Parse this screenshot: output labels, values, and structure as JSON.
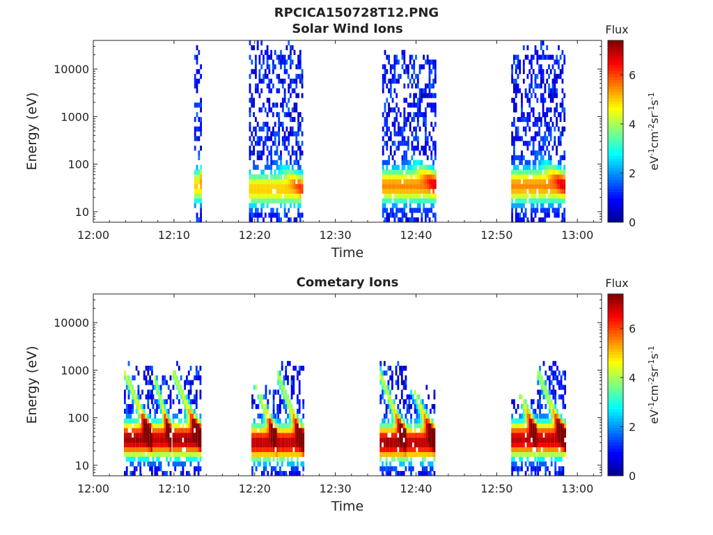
{
  "figure": {
    "title": "RPCICA150728T12.PNG"
  },
  "colors": {
    "colormap": "jet",
    "cmap_stops": [
      "#00008f",
      "#0000ff",
      "#0080ff",
      "#00ffff",
      "#80ff80",
      "#ffff00",
      "#ff8000",
      "#ff0000",
      "#800000"
    ]
  },
  "chart_data": [
    {
      "type": "heatmap",
      "title": "Solar Wind Ions",
      "xlabel": "Time",
      "ylabel": "Energy (eV)",
      "x_tick_labels": [
        "12:00",
        "12:10",
        "12:20",
        "12:30",
        "12:40",
        "12:50",
        "13:00"
      ],
      "x_ticks_min": [
        0,
        10,
        20,
        30,
        40,
        50,
        60
      ],
      "xlim_min": [
        0,
        63
      ],
      "y_scale": "log",
      "y_tick_labels": [
        "10",
        "100",
        "1000",
        "10000"
      ],
      "y_ticks": [
        10,
        100,
        1000,
        10000
      ],
      "ylim": [
        6,
        40000
      ],
      "colorbar": {
        "label": "Flux",
        "unit": "eV-1cm-2sr-1s-1",
        "range": [
          0,
          7.4
        ],
        "tick_labels": [
          "0",
          "2",
          "4",
          "6"
        ],
        "ticks": [
          0,
          2,
          4,
          6
        ]
      },
      "bursts": [
        {
          "t_start": 12.5,
          "t_end": 13.4,
          "peak_energy_eV": 35,
          "peak_flux": 5.0,
          "max_energy_eV": 30000
        },
        {
          "t_start": 19.3,
          "t_end": 25.8,
          "peak_energy_eV": 30,
          "peak_flux": 5.0,
          "max_energy_eV": 35000
        },
        {
          "t_start": 35.8,
          "t_end": 42.4,
          "peak_energy_eV": 35,
          "peak_flux": 5.5,
          "max_energy_eV": 25000
        },
        {
          "t_start": 51.8,
          "t_end": 58.3,
          "peak_energy_eV": 35,
          "peak_flux": 5.5,
          "max_energy_eV": 35000
        }
      ]
    },
    {
      "type": "heatmap",
      "title": "Cometary Ions",
      "xlabel": "Time",
      "ylabel": "Energy (eV)",
      "x_tick_labels": [
        "12:00",
        "12:10",
        "12:20",
        "12:30",
        "12:40",
        "12:50",
        "13:00"
      ],
      "x_ticks_min": [
        0,
        10,
        20,
        30,
        40,
        50,
        60
      ],
      "xlim_min": [
        0,
        63
      ],
      "y_scale": "log",
      "y_tick_labels": [
        "10",
        "100",
        "1000",
        "10000"
      ],
      "y_ticks": [
        10,
        100,
        1000,
        10000
      ],
      "ylim": [
        6,
        40000
      ],
      "colorbar": {
        "label": "Flux",
        "unit": "eV-1cm-2sr-1s-1",
        "range": [
          0,
          7.4
        ],
        "tick_labels": [
          "0",
          "2",
          "4",
          "6"
        ],
        "ticks": [
          0,
          2,
          4,
          6
        ]
      },
      "bursts": [
        {
          "t_start": 3.8,
          "t_end": 7.2,
          "peak_energy_eV": 35,
          "peak_flux": 7.2,
          "max_energy_eV": 1300
        },
        {
          "t_start": 7.3,
          "t_end": 9.6,
          "peak_energy_eV": 35,
          "peak_flux": 7.0,
          "max_energy_eV": 800
        },
        {
          "t_start": 9.8,
          "t_end": 13.3,
          "peak_energy_eV": 35,
          "peak_flux": 7.2,
          "max_energy_eV": 1300
        },
        {
          "t_start": 19.6,
          "t_end": 22.8,
          "peak_energy_eV": 30,
          "peak_flux": 7.0,
          "max_energy_eV": 500
        },
        {
          "t_start": 22.8,
          "t_end": 26.0,
          "peak_energy_eV": 30,
          "peak_flux": 7.0,
          "max_energy_eV": 1600
        },
        {
          "t_start": 35.5,
          "t_end": 38.8,
          "peak_energy_eV": 30,
          "peak_flux": 7.2,
          "max_energy_eV": 1500
        },
        {
          "t_start": 38.8,
          "t_end": 42.4,
          "peak_energy_eV": 30,
          "peak_flux": 7.0,
          "max_energy_eV": 400
        },
        {
          "t_start": 51.8,
          "t_end": 55.0,
          "peak_energy_eV": 35,
          "peak_flux": 7.0,
          "max_energy_eV": 300
        },
        {
          "t_start": 55.0,
          "t_end": 58.4,
          "peak_energy_eV": 35,
          "peak_flux": 7.0,
          "max_energy_eV": 1500
        }
      ]
    }
  ]
}
